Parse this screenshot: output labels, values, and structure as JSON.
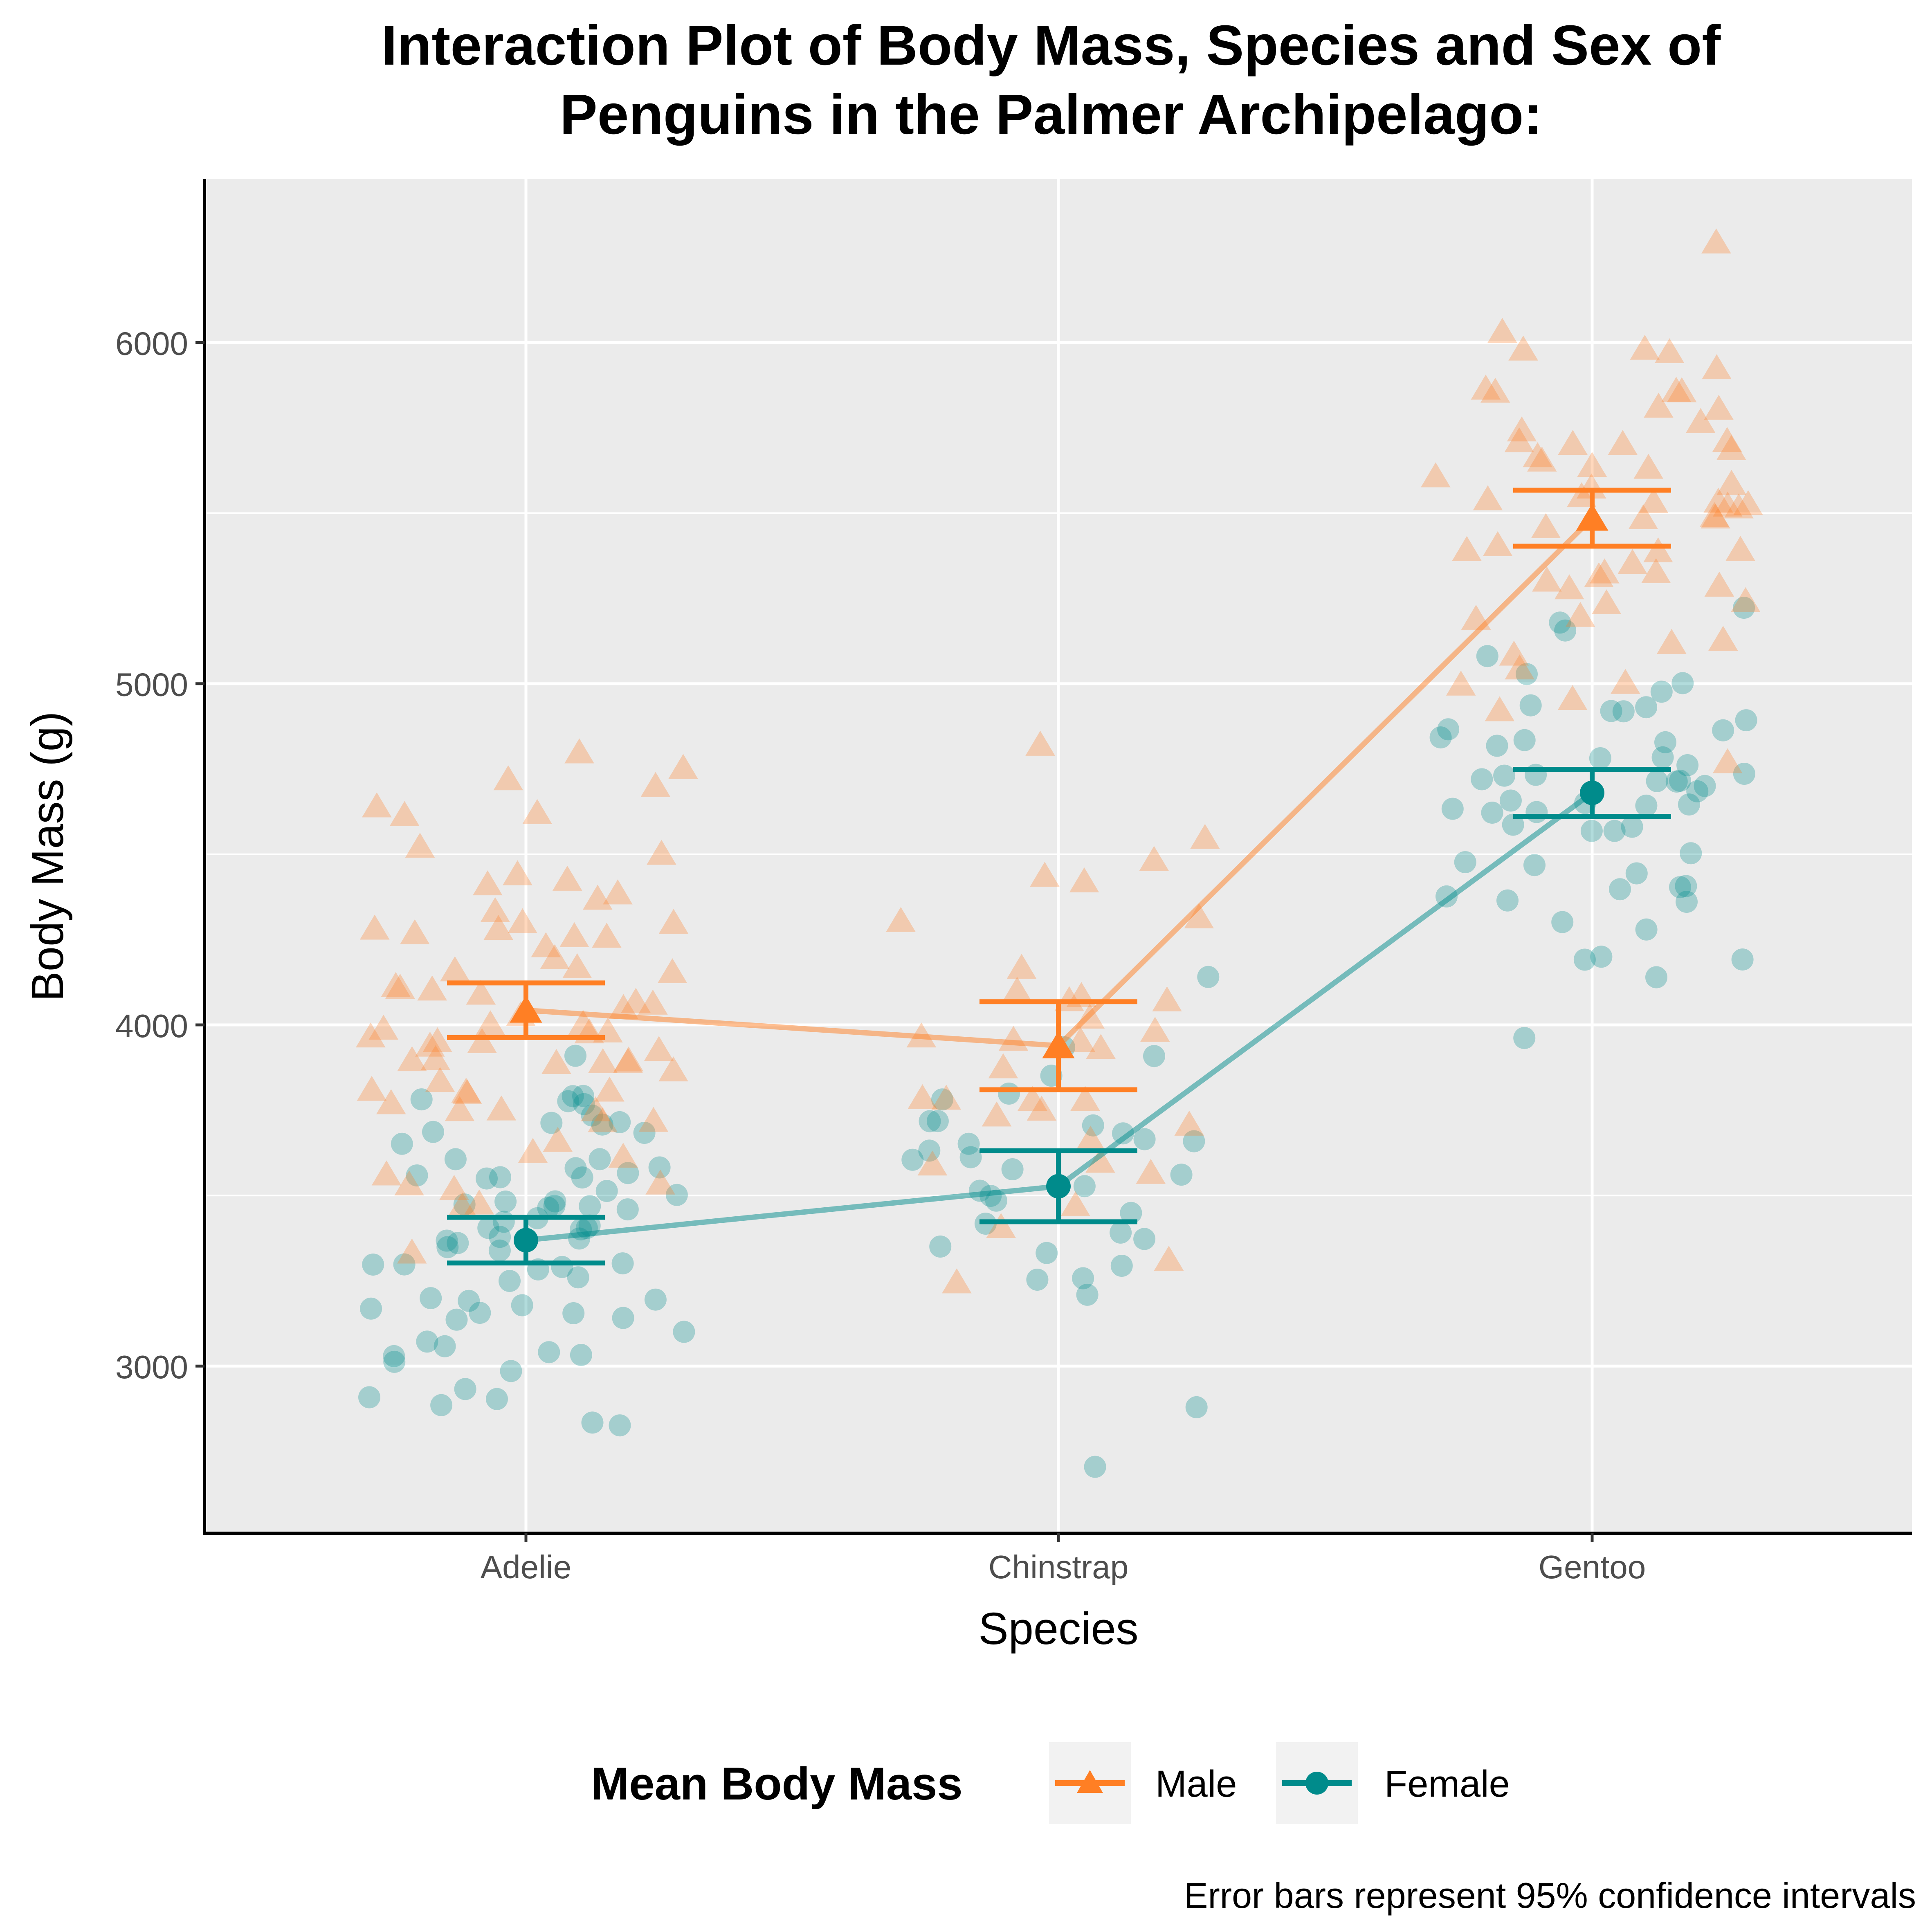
{
  "chart_data": {
    "type": "scatter",
    "title_lines": [
      "Interaction Plot of Body Mass, Species and Sex of",
      "Penguins in the Palmer Archipelago:"
    ],
    "xlabel": "Species",
    "ylabel": "Body Mass (g)",
    "categories": [
      "Adelie",
      "Chinstrap",
      "Gentoo"
    ],
    "ylim": [
      2510,
      6480
    ],
    "yticks": [
      3000,
      4000,
      5000,
      6000
    ],
    "ytick_labels": [
      "3000",
      "4000",
      "5000",
      "6000"
    ],
    "grid": true,
    "legend": {
      "title": "Mean Body Mass",
      "position": "bottom",
      "entries": [
        "Male",
        "Female"
      ]
    },
    "caption": "Error bars represent 95% confidence intervals",
    "colors": {
      "Male": "#ff7f24",
      "Female": "#008b8b",
      "panel": "#ebebeb",
      "grid": "#ffffff"
    },
    "series": [
      {
        "name": "Male",
        "marker": "triangle",
        "means": [
          4043,
          3939,
          5485
        ],
        "ci_low": [
          3963,
          3810,
          5403
        ],
        "ci_high": [
          4123,
          4068,
          5567
        ],
        "points": [
          [
            4800,
            4700,
            4650,
            4600,
            4750,
            4700,
            4500,
            4450,
            4400,
            4400,
            4350,
            4300,
            4300,
            4250,
            4250,
            4200,
            4150,
            4150,
            4100,
            4100,
            4050,
            4050,
            4000,
            4000,
            3950,
            3950,
            3900,
            3900,
            3850,
            3800,
            3800,
            3750,
            3750,
            3700,
            3650,
            3600,
            3550,
            3550,
            3500,
            3450,
            4100,
            4300,
            4450,
            4600,
            4250,
            4000,
            3950,
            3900,
            3800,
            4050,
            4350,
            4300,
            4000,
            3900,
            3950,
            3850,
            3900,
            3750,
            3550,
            3500,
            3350,
            4500,
            4250,
            4050,
            4150,
            3950,
            4100,
            3750,
            3900,
            4000,
            3800,
            3700,
            3650
          ],
          [
            4800,
            4550,
            4500,
            4450,
            4400,
            4300,
            4300,
            4150,
            4100,
            4100,
            4050,
            4050,
            4000,
            3950,
            3950,
            3900,
            3800,
            3800,
            3800,
            3750,
            3750,
            3700,
            3650,
            3600,
            3450,
            3400,
            3300,
            3250,
            4000,
            3950,
            3800,
            3600,
            3550,
            3950
          ],
          [
            6300,
            6050,
            6000,
            6000,
            5950,
            5950,
            5850,
            5850,
            5850,
            5800,
            5800,
            5750,
            5700,
            5700,
            5700,
            5700,
            5650,
            5650,
            5650,
            5600,
            5600,
            5550,
            5550,
            5550,
            5550,
            5500,
            5500,
            5500,
            5500,
            5450,
            5400,
            5400,
            5400,
            5350,
            5350,
            5300,
            5300,
            5300,
            5250,
            5200,
            5200,
            5150,
            5100,
            5100,
            5050,
            5000,
            5000,
            4950,
            4925,
            4750,
            5550,
            5400,
            5600,
            5850,
            5650,
            5300,
            5750,
            5700,
            5500,
            5250,
            5350
          ]
        ]
      },
      {
        "name": "Female",
        "marker": "circle",
        "means": [
          3369,
          3527,
          4680
        ],
        "ci_low": [
          3302,
          3423,
          4611
        ],
        "ci_high": [
          3436,
          3631,
          4749
        ],
        "points": [
          [
            3900,
            3800,
            3800,
            3800,
            3750,
            3700,
            3700,
            3700,
            3700,
            3700,
            3650,
            3600,
            3600,
            3600,
            3550,
            3550,
            3550,
            3550,
            3500,
            3500,
            3500,
            3450,
            3450,
            3450,
            3450,
            3400,
            3400,
            3400,
            3400,
            3400,
            3350,
            3350,
            3350,
            3325,
            3300,
            3300,
            3300,
            3300,
            3250,
            3250,
            3200,
            3200,
            3200,
            3175,
            3150,
            3150,
            3150,
            3100,
            3075,
            3050,
            3050,
            3050,
            3000,
            3000,
            2950,
            2900,
            2900,
            2900,
            2850,
            2850,
            3500,
            3450,
            3350,
            3800,
            3400,
            3600,
            3750,
            3450,
            3550,
            3200,
            3150,
            3050,
            3300
          ],
          [
            4150,
            3950,
            3900,
            3850,
            3800,
            3775,
            3700,
            3700,
            3700,
            3675,
            3675,
            3650,
            3650,
            3650,
            3600,
            3600,
            3550,
            3525,
            3500,
            3500,
            3450,
            3400,
            3400,
            3350,
            3350,
            3325,
            3300,
            3250,
            3250,
            3200,
            2900,
            2700,
            3550,
            3600
          ],
          [
            5200,
            5200,
            5150,
            5100,
            5050,
            5000,
            5000,
            4950,
            4950,
            4925,
            4900,
            4875,
            4850,
            4850,
            4850,
            4800,
            4800,
            4750,
            4750,
            4750,
            4725,
            4700,
            4700,
            4700,
            4700,
            4650,
            4650,
            4625,
            4600,
            4600,
            4600,
            4575,
            4550,
            4500,
            4450,
            4450,
            4400,
            4400,
            4400,
            4375,
            4350,
            4300,
            4300,
            4200,
            4200,
            4200,
            4150,
            3950,
            4850,
            4700,
            4600,
            4500,
            4650,
            4750,
            4800,
            4900,
            4625,
            4400
          ]
        ]
      }
    ]
  }
}
